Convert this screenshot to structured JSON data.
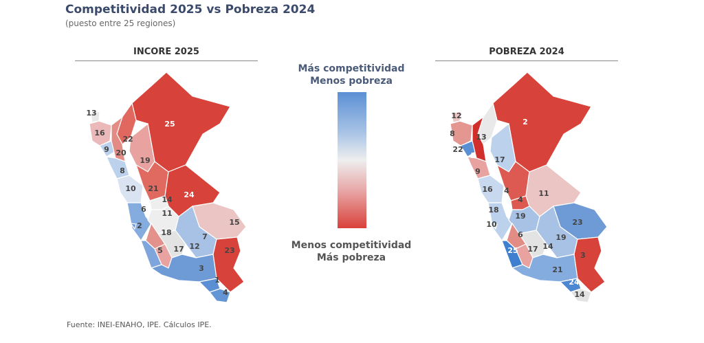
{
  "title": "Competitividad 2025 vs Pobreza 2024",
  "subtitle": "(puesto entre 25 regiones)",
  "legend": {
    "top_line1": "Más competitividad",
    "top_line2": "Menos pobreza",
    "bottom_line1": "Menos competitividad",
    "bottom_line2": "Más pobreza",
    "color_top": "#5b8fd4",
    "color_mid": "#eeeeee",
    "color_bottom": "#d9413a"
  },
  "source": "Fuente: INEI-ENAHO, IPE. Cálculos IPE.",
  "maps": {
    "incore": {
      "title": "INCORE 2025",
      "labels": [
        "25",
        "13",
        "16",
        "9",
        "22",
        "20",
        "19",
        "8",
        "21",
        "10",
        "24",
        "14",
        "6",
        "11",
        "2",
        "15",
        "18",
        "7",
        "12",
        "17",
        "5",
        "23",
        "3",
        "1",
        "4"
      ]
    },
    "pobreza": {
      "title": "POBREZA 2024",
      "labels": [
        "2",
        "12",
        "8",
        "13",
        "22",
        "1",
        "17",
        "9",
        "16",
        "4",
        "11",
        "4",
        "18",
        "10",
        "19",
        "23",
        "6",
        "19",
        "17",
        "14",
        "25",
        "3",
        "21",
        "24",
        "14"
      ]
    }
  }
}
